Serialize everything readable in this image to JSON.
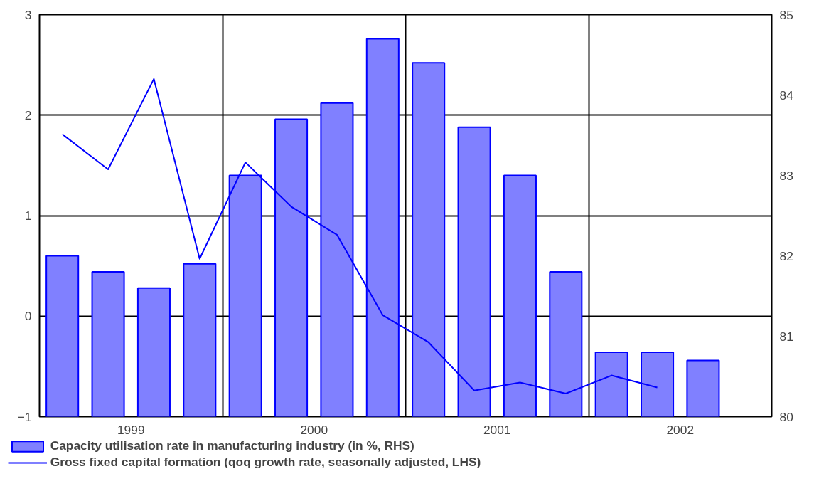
{
  "chart_data": {
    "type": "bar",
    "x": [
      1999.125,
      1999.375,
      1999.625,
      1999.875,
      2000.125,
      2000.375,
      2000.625,
      2000.875,
      2001.125,
      2001.375,
      2001.625,
      2001.875,
      2002.125,
      2002.375,
      2002.625
    ],
    "series": [
      {
        "name": "Capacity utilisation rate in manufacturing industry (in %, RHS)",
        "color": "#8080ff",
        "axis": "y2",
        "values": [
          82.0,
          81.8,
          81.6,
          81.9,
          83.0,
          83.7,
          83.9,
          84.7,
          84.4,
          83.6,
          83.0,
          81.8,
          80.8,
          80.8,
          80.7
        ]
      },
      {
        "name": "Gross fixed capital formation (qoq growth rate, seasonally adjusted, LHS)",
        "type": "line",
        "color": "#0000ff",
        "values": [
          1.81,
          1.46,
          2.36,
          0.57,
          1.53,
          1.09,
          0.81,
          0.01,
          -0.26,
          -0.74,
          -0.66,
          -0.77,
          -0.59,
          -0.71,
          null
        ]
      }
    ],
    "xlim": [
      1999,
      2003
    ],
    "xticks": [
      {
        "value": 1999.5,
        "label": "1999"
      },
      {
        "value": 2000,
        "label": null
      },
      {
        "value": 2000.5,
        "label": "2000"
      },
      {
        "value": 2001,
        "label": null
      },
      {
        "value": 2001.5,
        "label": "2001"
      },
      {
        "value": 2002,
        "label": null
      },
      {
        "value": 2002.5,
        "label": "2002"
      }
    ],
    "ylim": [
      -1,
      3
    ],
    "yticks": [
      -1,
      0,
      1,
      2,
      3
    ],
    "y2lim": [
      80,
      85
    ],
    "y2ticks": [
      80,
      81,
      82,
      83,
      84,
      85
    ],
    "grid": true,
    "legend": "bottom",
    "line_style": "solid",
    "marker": "none"
  }
}
